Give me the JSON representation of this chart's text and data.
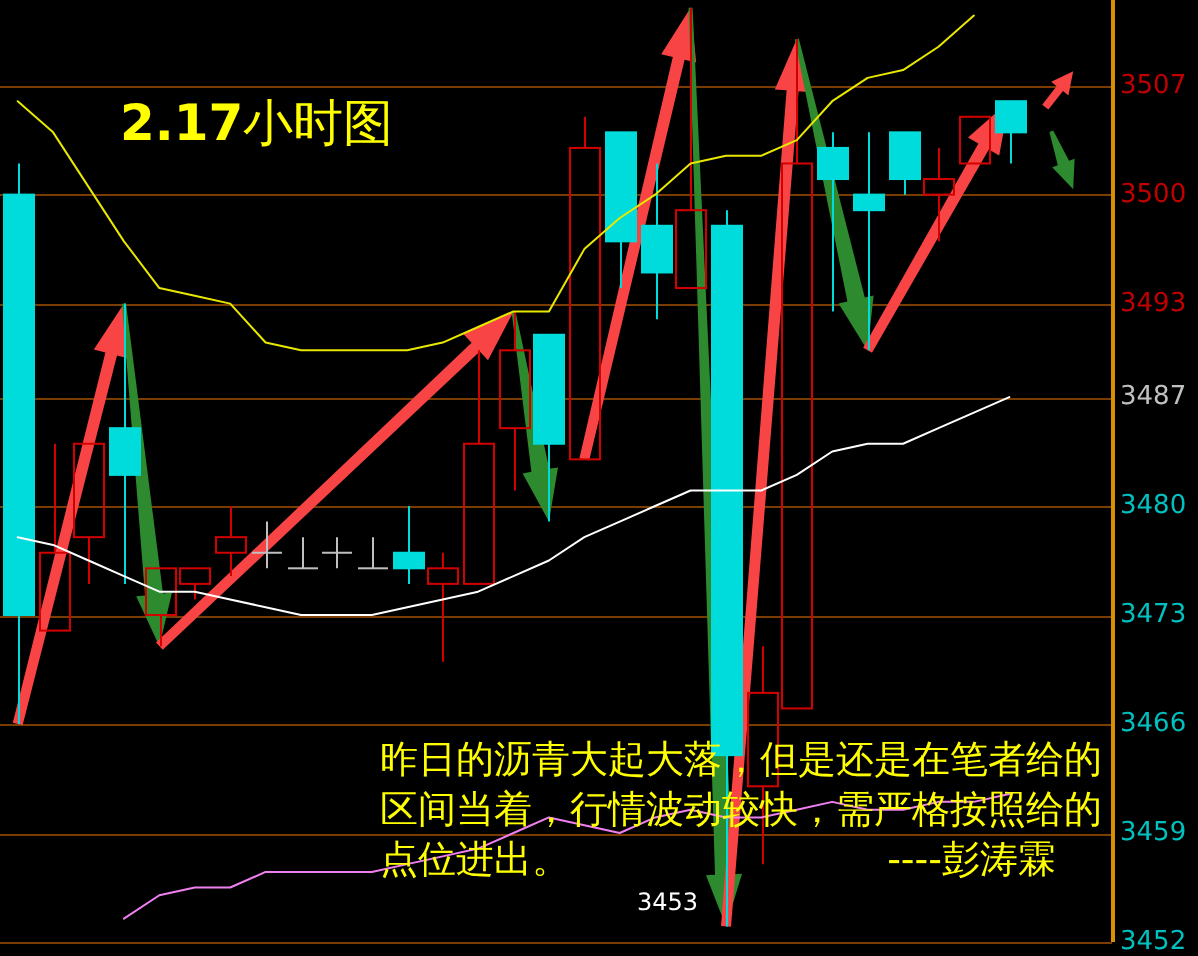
{
  "chart_data": {
    "type": "candlestick",
    "title": "2.17小时图",
    "categories": [
      null,
      null,
      null,
      null,
      null,
      null,
      null,
      null,
      null,
      null,
      null,
      null,
      null,
      null,
      null,
      null,
      null,
      null,
      null,
      null,
      null,
      null,
      null,
      null,
      null,
      null,
      null,
      null,
      null
    ],
    "ohlc": [
      [
        3500,
        3502,
        3466,
        3473
      ],
      [
        3472,
        3484,
        3472,
        3477
      ],
      [
        3478,
        3484,
        3475,
        3484
      ],
      [
        3485,
        3493,
        3475,
        3482
      ],
      [
        3473,
        3476,
        3471,
        3476
      ],
      [
        3475,
        3476,
        3474,
        3476
      ],
      [
        3477,
        3480,
        3475.5,
        3478
      ],
      [
        3477,
        3479,
        3476,
        3477
      ],
      [
        3476,
        3478,
        3476,
        3476
      ],
      [
        3477,
        3478,
        3476,
        3477
      ],
      [
        3476,
        3478,
        3476,
        3476
      ],
      [
        3477,
        3480,
        3475,
        3476
      ],
      [
        3475,
        3477,
        3470,
        3476
      ],
      [
        3475,
        3490,
        3475,
        3484
      ],
      [
        3485,
        3492.5,
        3481,
        3490
      ],
      [
        3491,
        3491,
        3479,
        3484
      ],
      [
        3483,
        3505,
        3483,
        3503
      ],
      [
        3504,
        3504,
        3494,
        3497
      ],
      [
        3498,
        3502,
        3492,
        3495
      ],
      [
        3494,
        3512,
        3494,
        3499
      ],
      [
        3498,
        3499,
        3453,
        3464
      ],
      [
        3462,
        3471,
        3457,
        3468
      ],
      [
        3467,
        3510,
        3467,
        3502
      ],
      [
        3503,
        3504,
        3492.5,
        3501
      ],
      [
        3500,
        3504,
        3490,
        3499
      ],
      [
        3504,
        3504,
        3500,
        3501
      ],
      [
        3500,
        3503,
        3497,
        3501
      ],
      [
        3502,
        3505,
        3502,
        3505
      ],
      [
        3506,
        3506,
        3502,
        3504
      ]
    ],
    "colors": [
      "#00dcdc",
      "#d40000",
      "#d40000",
      "#00dcdc",
      "#d40000",
      "#d40000",
      "#d40000",
      "#c0c0c0",
      "#c0c0c0",
      "#c0c0c0",
      "#c0c0c0",
      "#00dcdc",
      "#d40000",
      "#d40000",
      "#d40000",
      "#00dcdc",
      "#d40000",
      "#00dcdc",
      "#00dcdc",
      "#d40000",
      "#00dcdc",
      "#d40000",
      "#d40000",
      "#00dcdc",
      "#00dcdc",
      "#00dcdc",
      "#d40000",
      "#d40000",
      "#00dcdc"
    ],
    "series": [
      {
        "type": "line",
        "color": "#e8e800",
        "values": [
          3506,
          3504,
          3500.5,
          3497,
          3494,
          3493.5,
          3493,
          3490.5,
          3490,
          3490,
          3490,
          3490,
          3490.5,
          3491.5,
          3492.5,
          3492.5,
          3496.5,
          3498.5,
          3500,
          3502,
          3502.5,
          3502.5,
          3503.5,
          3506,
          3507.5,
          3508,
          3509.5,
          3511.5,
          null
        ]
      },
      {
        "type": "line",
        "color": "#ffffff",
        "values": [
          3478,
          3477.5,
          3476.5,
          3475.5,
          3474.5,
          3474.5,
          3474,
          3473.5,
          3473,
          3473,
          3473,
          3473.5,
          3474,
          3474.5,
          3475.5,
          3476.5,
          3478,
          3479,
          3480,
          3481,
          3481,
          3481,
          3482,
          3483.5,
          3484,
          3484,
          3485,
          3486,
          3487
        ]
      },
      {
        "type": "line",
        "color": "#f080f0",
        "values": [
          null,
          null,
          null,
          3453.5,
          3455,
          3455.5,
          3455.5,
          3456.5,
          3456.5,
          3456.5,
          3456.5,
          3457,
          3457.5,
          3458,
          3459,
          3460,
          3459.5,
          3459,
          3460,
          3460.5,
          3460,
          3460,
          3460.5,
          3461,
          3460.5,
          3460.5,
          3461,
          3461,
          3461.5
        ]
      }
    ],
    "ylim": [
      3452,
      3512.5
    ],
    "yticks": [
      3452,
      3459,
      3466,
      3473,
      3480,
      3487,
      3493,
      3500,
      3507
    ],
    "grid": "y",
    "tick_labels": "y",
    "annotations": [
      "昨日的沥青大起大落，但是还是在笔者给的区间当着，行情波动较快，需严格按照给的点位进出。 ----彭涛霖",
      "3453"
    ]
  }
}
